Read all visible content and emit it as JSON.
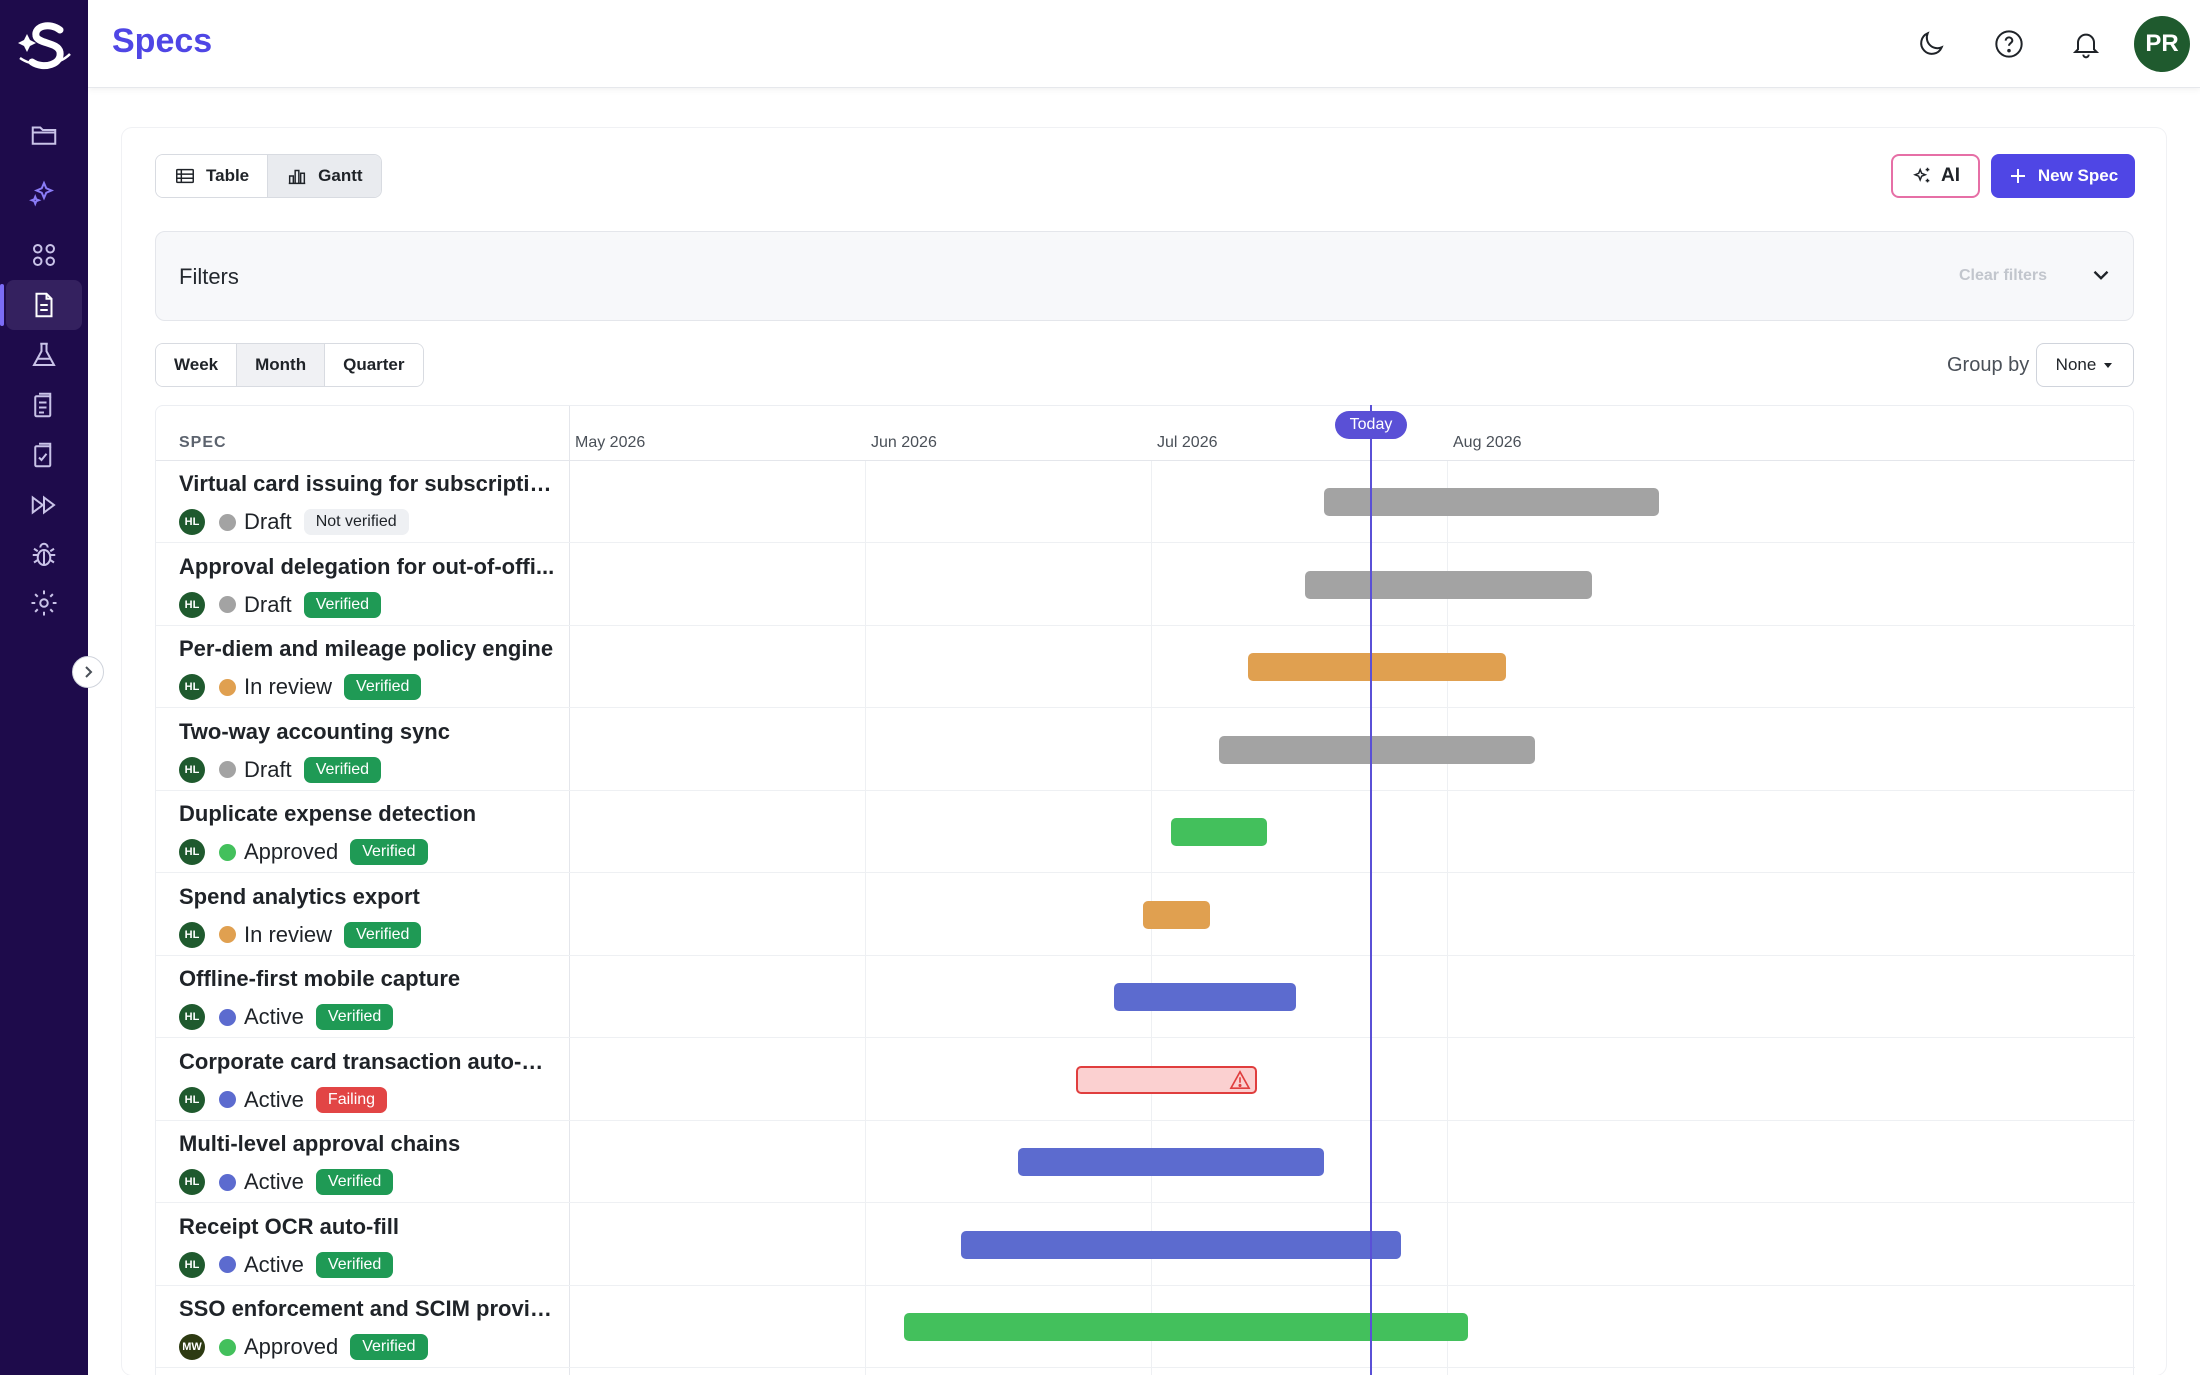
{
  "app": {
    "title": "Specs",
    "user_initials": "PR",
    "brand_color": "#4f46e5",
    "nav_icons": [
      "folder-icon",
      "sparkles-icon",
      "grid-icon",
      "document-icon",
      "flask-icon",
      "clipboard-list-icon",
      "clipboard-check-icon",
      "fast-forward-icon",
      "bug-icon",
      "gear-icon"
    ],
    "active_nav": "document-icon",
    "header_icons": [
      "moon-icon",
      "help-icon",
      "bell-icon"
    ]
  },
  "toolbar": {
    "view_options": [
      "Table",
      "Gantt"
    ],
    "selected_view": "Gantt",
    "ai_label": "AI",
    "new_spec_label": "New Spec"
  },
  "filters": {
    "label": "Filters",
    "clear_label": "Clear filters"
  },
  "timeline": {
    "range_options": [
      "Week",
      "Month",
      "Quarter"
    ],
    "selected_range": "Month",
    "group_by_label": "Group by",
    "group_by_value": "None",
    "spec_column_label": "SPEC",
    "months": [
      "May 2026",
      "Jun 2026",
      "Jul 2026",
      "Aug 2026"
    ],
    "today_label": "Today",
    "today_color": "#5a50d6"
  },
  "status_colors": {
    "Draft": "#a3a3a3",
    "In review": "#e0a050",
    "Approved": "#43c05c",
    "Active": "#5c6bcf"
  },
  "badge_styles": {
    "Not verified": {
      "bg": "#eef0f3",
      "fg": "#1f2328"
    },
    "Verified": {
      "bg": "#1f9a55",
      "fg": "#ffffff"
    },
    "Failing": {
      "bg": "#e24545",
      "fg": "#ffffff"
    }
  },
  "specs": [
    {
      "name": "Virtual card issuing for subscriptio...",
      "owner": "HL",
      "status": "Draft",
      "badge": "Not verified",
      "start": "2026-07-19",
      "end": "2026-08-23"
    },
    {
      "name": "Approval delegation for out-of-offi...",
      "owner": "HL",
      "status": "Draft",
      "badge": "Verified",
      "start": "2026-07-17",
      "end": "2026-08-16"
    },
    {
      "name": "Per-diem and mileage policy engine",
      "owner": "HL",
      "status": "In review",
      "badge": "Verified",
      "start": "2026-07-11",
      "end": "2026-08-07"
    },
    {
      "name": "Two-way accounting sync",
      "owner": "HL",
      "status": "Draft",
      "badge": "Verified",
      "start": "2026-07-08",
      "end": "2026-08-10"
    },
    {
      "name": "Duplicate expense detection",
      "owner": "HL",
      "status": "Approved",
      "badge": "Verified",
      "start": "2026-07-03",
      "end": "2026-07-13"
    },
    {
      "name": "Spend analytics export",
      "owner": "HL",
      "status": "In review",
      "badge": "Verified",
      "start": "2026-06-30",
      "end": "2026-07-07"
    },
    {
      "name": "Offline-first mobile capture",
      "owner": "HL",
      "status": "Active",
      "badge": "Verified",
      "start": "2026-06-27",
      "end": "2026-07-16"
    },
    {
      "name": "Corporate card transaction auto-m...",
      "owner": "HL",
      "status": "Active",
      "badge": "Failing",
      "start": "2026-06-23",
      "end": "2026-07-12",
      "warning": true
    },
    {
      "name": "Multi-level approval chains",
      "owner": "HL",
      "status": "Active",
      "badge": "Verified",
      "start": "2026-06-17",
      "end": "2026-07-19"
    },
    {
      "name": "Receipt OCR auto-fill",
      "owner": "HL",
      "status": "Active",
      "badge": "Verified",
      "start": "2026-06-11",
      "end": "2026-07-27"
    },
    {
      "name": "SSO enforcement and SCIM provis...",
      "owner": "MW",
      "status": "Approved",
      "badge": "Verified",
      "start": "2026-06-05",
      "end": "2026-08-03"
    }
  ]
}
